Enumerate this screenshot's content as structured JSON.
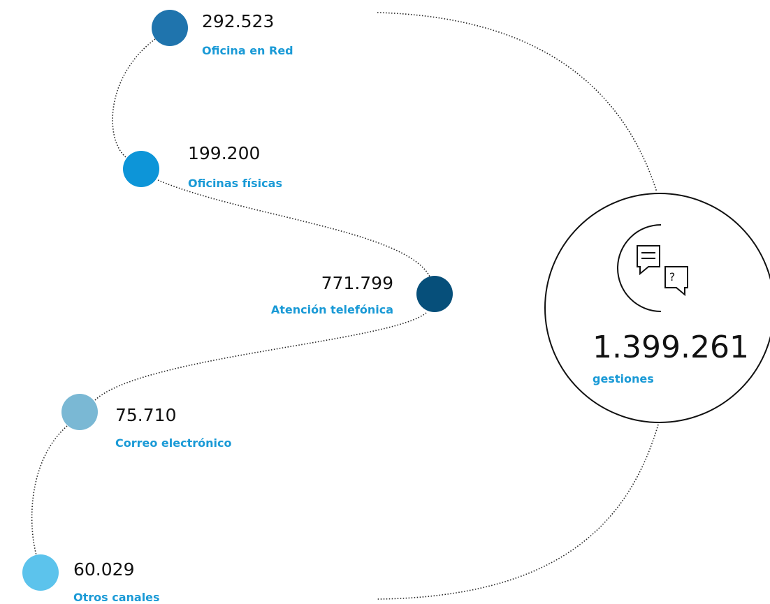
{
  "nodes": [
    {
      "value": "292.523",
      "label": "Oficina en Red",
      "color": "#1f74ad"
    },
    {
      "value": "199.200",
      "label": "Oficinas físicas",
      "color": "#0d95d8"
    },
    {
      "value": "771.799",
      "label": "Atención telefónica",
      "color": "#064f7a"
    },
    {
      "value": "75.710",
      "label": "Correo electrónico",
      "color": "#7ab8d4"
    },
    {
      "value": "60.029",
      "label": "Otros canales",
      "color": "#5cc3ec"
    }
  ],
  "total": {
    "value": "1.399.261",
    "label": "gestiones"
  }
}
